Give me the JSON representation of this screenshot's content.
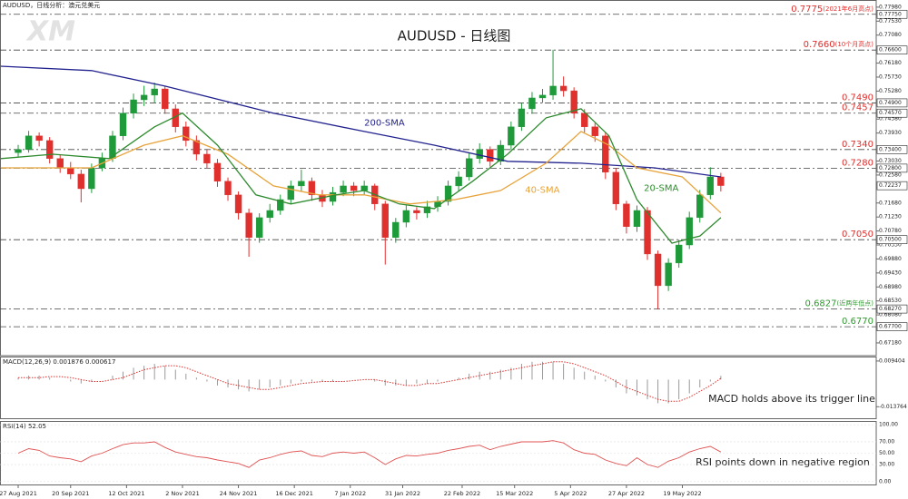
{
  "chart_data": [
    {
      "type": "candlestick",
      "title": "AUDUSD - 日线图",
      "header": "AUDUSD，日线分析：澳元兑美元",
      "watermark": "XM",
      "up_color": "#1f9a3a",
      "down_color": "#e0302e",
      "xlim": [
        -5.2,
        245.45
      ],
      "ylim": [
        0.6677,
        0.7821
      ],
      "xticks": [
        {
          "value": 0,
          "label": "27 Aug 2021"
        },
        {
          "value": 15,
          "label": "20 Sep 2021"
        },
        {
          "value": 31,
          "label": "12 Oct 2021"
        },
        {
          "value": 47,
          "label": "2 Nov 2021"
        },
        {
          "value": 63,
          "label": "24 Nov 2021"
        },
        {
          "value": 79,
          "label": "16 Dec 2021"
        },
        {
          "value": 95,
          "label": "7 Jan 2022"
        },
        {
          "value": 110,
          "label": "31 Jan 2022"
        },
        {
          "value": 127,
          "label": "22 Feb 2022"
        },
        {
          "value": 142,
          "label": "15 Mar 2022"
        },
        {
          "value": 158,
          "label": "5 Apr 2022"
        },
        {
          "value": 174,
          "label": "27 Apr 2022"
        },
        {
          "value": 190,
          "label": "19 May 2022"
        }
      ],
      "yticks": [
        {
          "value": 0.7798,
          "label": "0.77980"
        },
        {
          "value": 0.7753,
          "label": "0.77530"
        },
        {
          "value": 0.7708,
          "label": "0.77080"
        },
        {
          "value": 0.7618,
          "label": "0.76180"
        },
        {
          "value": 0.7573,
          "label": "0.75730"
        },
        {
          "value": 0.7528,
          "label": "0.75280"
        },
        {
          "value": 0.7438,
          "label": "0.74380"
        },
        {
          "value": 0.7393,
          "label": "0.73930"
        },
        {
          "value": 0.7303,
          "label": "0.73030"
        },
        {
          "value": 0.7258,
          "label": "0.72580"
        },
        {
          "value": 0.7168,
          "label": "0.71680"
        },
        {
          "value": 0.7123,
          "label": "0.71230"
        },
        {
          "value": 0.7078,
          "label": "0.70780"
        },
        {
          "value": 0.7033,
          "label": "0.70330"
        },
        {
          "value": 0.6988,
          "label": "0.69880"
        },
        {
          "value": 0.6943,
          "label": "0.69430"
        },
        {
          "value": 0.6898,
          "label": "0.68980"
        },
        {
          "value": 0.6853,
          "label": "0.68530"
        },
        {
          "value": 0.6808,
          "label": "0.68080"
        },
        {
          "value": 0.6718,
          "label": "0.67180"
        }
      ],
      "levels": [
        {
          "value": 0.7775,
          "label": "0.7775",
          "note": "(2021年6月高点)",
          "axis_label": "0.77750",
          "color": "#e0302e"
        },
        {
          "value": 0.766,
          "label": "0.7660",
          "note": "(10个月高点)",
          "axis_label": "0.76600",
          "color": "#e0302e"
        },
        {
          "value": 0.749,
          "label": "0.7490",
          "axis_label": "0.74900",
          "color": "#e0302e"
        },
        {
          "value": 0.7457,
          "label": "0.7457",
          "axis_label": "0.74570",
          "color": "#e0302e"
        },
        {
          "value": 0.734,
          "label": "0.7340",
          "axis_label": "0.73400",
          "color": "#e0302e"
        },
        {
          "value": 0.728,
          "label": "0.7280",
          "axis_label": "0.72800",
          "color": "#e0302e"
        },
        {
          "value": 0.705,
          "label": "0.7050",
          "axis_label": "0.70500",
          "color": "#e0302e"
        },
        {
          "value": 0.6827,
          "label": "0.6827",
          "note": "(近两年低点)",
          "axis_label": "0.68270",
          "color": "#2e9a2e"
        },
        {
          "value": 0.677,
          "label": "0.6770",
          "axis_label": "0.67700",
          "color": "#2e9a2e"
        }
      ],
      "last_price": {
        "value": 0.72237,
        "label": "0.72237"
      },
      "x": [
        0,
        3,
        6,
        9,
        12,
        15,
        18,
        21,
        24,
        27,
        30,
        33,
        36,
        39,
        42,
        45,
        48,
        51,
        54,
        57,
        60,
        63,
        66,
        69,
        72,
        75,
        78,
        81,
        84,
        87,
        90,
        93,
        96,
        99,
        102,
        105,
        108,
        111,
        114,
        117,
        120,
        123,
        126,
        129,
        132,
        135,
        138,
        141,
        144,
        147,
        150,
        153,
        156,
        159,
        162,
        165,
        168,
        171,
        174,
        177,
        180,
        183,
        186,
        189,
        192,
        195,
        198,
        201
      ],
      "ohlc": [
        [
          0.733,
          0.7355,
          0.7315,
          0.734
        ],
        [
          0.734,
          0.74,
          0.733,
          0.7384
        ],
        [
          0.7384,
          0.7395,
          0.735,
          0.7369
        ],
        [
          0.7369,
          0.738,
          0.7295,
          0.7311
        ],
        [
          0.7311,
          0.7325,
          0.7265,
          0.7281
        ],
        [
          0.7281,
          0.73,
          0.7245,
          0.7261
        ],
        [
          0.7261,
          0.7275,
          0.717,
          0.7214
        ],
        [
          0.7214,
          0.7295,
          0.72,
          0.7281
        ],
        [
          0.7281,
          0.733,
          0.727,
          0.7311
        ],
        [
          0.7311,
          0.74,
          0.73,
          0.7384
        ],
        [
          0.7384,
          0.7475,
          0.737,
          0.7457
        ],
        [
          0.7457,
          0.752,
          0.744,
          0.75
        ],
        [
          0.75,
          0.7545,
          0.748,
          0.7515
        ],
        [
          0.7515,
          0.7555,
          0.749,
          0.7535
        ],
        [
          0.7535,
          0.7545,
          0.7455,
          0.7471
        ],
        [
          0.7471,
          0.7485,
          0.7395,
          0.7413
        ],
        [
          0.7413,
          0.743,
          0.735,
          0.7369
        ],
        [
          0.7369,
          0.7385,
          0.7305,
          0.7325
        ],
        [
          0.7325,
          0.734,
          0.728,
          0.7296
        ],
        [
          0.7296,
          0.731,
          0.722,
          0.7238
        ],
        [
          0.7238,
          0.725,
          0.7175,
          0.7194
        ],
        [
          0.7194,
          0.7205,
          0.7115,
          0.7136
        ],
        [
          0.7136,
          0.715,
          0.6995,
          0.7057
        ],
        [
          0.7057,
          0.7135,
          0.704,
          0.7121
        ],
        [
          0.7121,
          0.7165,
          0.7105,
          0.7144
        ],
        [
          0.7144,
          0.7195,
          0.713,
          0.7179
        ],
        [
          0.7179,
          0.724,
          0.7165,
          0.7223
        ],
        [
          0.7223,
          0.7275,
          0.7205,
          0.7238
        ],
        [
          0.7238,
          0.725,
          0.7175,
          0.7194
        ],
        [
          0.7194,
          0.721,
          0.7155,
          0.7173
        ],
        [
          0.7173,
          0.722,
          0.716,
          0.7202
        ],
        [
          0.7202,
          0.724,
          0.719,
          0.7223
        ],
        [
          0.7223,
          0.7235,
          0.719,
          0.7208
        ],
        [
          0.7208,
          0.724,
          0.7195,
          0.7223
        ],
        [
          0.7223,
          0.723,
          0.7145,
          0.7165
        ],
        [
          0.7165,
          0.7175,
          0.697,
          0.7057
        ],
        [
          0.7057,
          0.712,
          0.704,
          0.7106
        ],
        [
          0.7106,
          0.716,
          0.709,
          0.7144
        ],
        [
          0.7144,
          0.7155,
          0.7115,
          0.7136
        ],
        [
          0.7136,
          0.7175,
          0.712,
          0.7156
        ],
        [
          0.7156,
          0.719,
          0.714,
          0.7173
        ],
        [
          0.7173,
          0.724,
          0.716,
          0.7223
        ],
        [
          0.7223,
          0.727,
          0.7205,
          0.7252
        ],
        [
          0.7252,
          0.733,
          0.724,
          0.7311
        ],
        [
          0.7311,
          0.736,
          0.7295,
          0.734
        ],
        [
          0.734,
          0.735,
          0.7285,
          0.7302
        ],
        [
          0.7302,
          0.737,
          0.729,
          0.7354
        ],
        [
          0.7354,
          0.743,
          0.734,
          0.7413
        ],
        [
          0.7413,
          0.749,
          0.74,
          0.7471
        ],
        [
          0.7471,
          0.7525,
          0.7455,
          0.7506
        ],
        [
          0.7506,
          0.7535,
          0.749,
          0.7515
        ],
        [
          0.7515,
          0.7661,
          0.75,
          0.7544
        ],
        [
          0.7544,
          0.7575,
          0.751,
          0.7529
        ],
        [
          0.7529,
          0.754,
          0.744,
          0.7457
        ],
        [
          0.7457,
          0.747,
          0.7395,
          0.7413
        ],
        [
          0.7413,
          0.7425,
          0.7365,
          0.7384
        ],
        [
          0.7384,
          0.7395,
          0.7245,
          0.7267
        ],
        [
          0.7267,
          0.728,
          0.7145,
          0.7165
        ],
        [
          0.7165,
          0.7175,
          0.707,
          0.7092
        ],
        [
          0.7092,
          0.716,
          0.7075,
          0.7144
        ],
        [
          0.7144,
          0.7155,
          0.6985,
          0.7004
        ],
        [
          0.7004,
          0.7015,
          0.6827,
          0.6902
        ],
        [
          0.6902,
          0.699,
          0.6885,
          0.6975
        ],
        [
          0.6975,
          0.705,
          0.696,
          0.7033
        ],
        [
          0.7033,
          0.714,
          0.702,
          0.7121
        ],
        [
          0.7121,
          0.721,
          0.7105,
          0.7194
        ],
        [
          0.7194,
          0.7283,
          0.718,
          0.7252
        ],
        [
          0.7252,
          0.7265,
          0.7205,
          0.7224
        ]
      ],
      "series": [
        {
          "name": "200-SMA",
          "color": "#23238f",
          "x": [
            -5,
            21,
            42,
            73,
            99,
            119,
            140,
            161,
            182,
            201
          ],
          "values": [
            0.7608,
            0.7594,
            0.7544,
            0.7457,
            0.7398,
            0.7354,
            0.7302,
            0.7296,
            0.7281,
            0.7252
          ],
          "label_at": [
            99,
            0.7425
          ]
        },
        {
          "name": "40-SMA",
          "color": "#e8a33a",
          "x": [
            -5,
            21,
            36,
            47,
            60,
            73,
            86,
            99,
            112,
            125,
            138,
            151,
            161,
            169,
            177,
            190,
            201
          ],
          "values": [
            0.7281,
            0.7281,
            0.7354,
            0.7384,
            0.7325,
            0.7223,
            0.7194,
            0.7194,
            0.7165,
            0.7179,
            0.7208,
            0.7296,
            0.7398,
            0.7354,
            0.7281,
            0.7252,
            0.7136
          ],
          "label_at": [
            145,
            0.721
          ]
        },
        {
          "name": "20-SMA",
          "color": "#2e8b2e",
          "x": [
            -5,
            10,
            26,
            39,
            47,
            57,
            68,
            78,
            91,
            99,
            109,
            119,
            130,
            140,
            151,
            161,
            169,
            177,
            187,
            195,
            201
          ],
          "values": [
            0.7311,
            0.7325,
            0.7311,
            0.7413,
            0.7457,
            0.7354,
            0.7194,
            0.7165,
            0.7194,
            0.7208,
            0.7165,
            0.715,
            0.7238,
            0.7325,
            0.7442,
            0.7471,
            0.7384,
            0.7179,
            0.7039,
            0.7062,
            0.7121
          ],
          "label_at": [
            179,
            0.7215
          ]
        }
      ]
    },
    {
      "type": "macd",
      "label": "MACD(12,26,9) 0.001876 0.000617",
      "annotation": "MACD holds above its trigger line",
      "xlim": [
        -5.2,
        245.45
      ],
      "ylim": [
        -0.0196,
        0.0112
      ],
      "yticks": [
        0.009404,
        -0.013764
      ],
      "x": [
        0,
        3,
        6,
        9,
        12,
        15,
        18,
        21,
        24,
        27,
        30,
        33,
        36,
        39,
        42,
        45,
        48,
        51,
        54,
        57,
        60,
        63,
        66,
        69,
        72,
        75,
        78,
        81,
        84,
        87,
        90,
        93,
        96,
        99,
        102,
        105,
        108,
        111,
        114,
        117,
        120,
        123,
        126,
        129,
        132,
        135,
        138,
        141,
        144,
        147,
        150,
        153,
        156,
        159,
        162,
        165,
        168,
        171,
        174,
        177,
        180,
        183,
        186,
        189,
        192,
        195,
        198,
        201
      ],
      "macd": [
        0.001,
        0.002,
        0.002,
        0.001,
        0,
        -0.001,
        -0.002,
        -0.001,
        0,
        0.002,
        0.004,
        0.006,
        0.007,
        0.008,
        0.007,
        0.005,
        0.003,
        0.001,
        -0.001,
        -0.003,
        -0.004,
        -0.005,
        -0.006,
        -0.005,
        -0.004,
        -0.003,
        -0.002,
        -0.001,
        -0.001,
        -0.001,
        -0.001,
        0,
        0,
        0,
        -0.001,
        -0.003,
        -0.003,
        -0.003,
        -0.002,
        -0.002,
        -0.001,
        0,
        0.001,
        0.003,
        0.004,
        0.004,
        0.005,
        0.006,
        0.008,
        0.009,
        0.009,
        0.009,
        0.008,
        0.006,
        0.004,
        0.002,
        -0.001,
        -0.004,
        -0.007,
        -0.008,
        -0.01,
        -0.012,
        -0.012,
        -0.01,
        -0.007,
        -0.004,
        -0.001,
        0.001876
      ],
      "signal": [
        0.001,
        0.001,
        0.001,
        0.0015,
        0.0015,
        0.001,
        0,
        -0.001,
        -0.001,
        0,
        0.001,
        0.003,
        0.005,
        0.006,
        0.007,
        0.007,
        0.006,
        0.004,
        0.002,
        0,
        -0.002,
        -0.003,
        -0.004,
        -0.005,
        -0.005,
        -0.004,
        -0.003,
        -0.002,
        -0.0015,
        -0.001,
        -0.001,
        -0.001,
        -0.0005,
        0,
        0,
        -0.001,
        -0.002,
        -0.003,
        -0.003,
        -0.002,
        -0.002,
        -0.001,
        0,
        0.001,
        0.002,
        0.003,
        0.004,
        0.005,
        0.006,
        0.007,
        0.008,
        0.009,
        0.009,
        0.008,
        0.006,
        0.004,
        0.002,
        -0.001,
        -0.004,
        -0.006,
        -0.008,
        -0.01,
        -0.011,
        -0.011,
        -0.009,
        -0.006,
        -0.003,
        0.000617
      ],
      "hist_color": "#9a9a9a",
      "signal_color": "#e0302e"
    },
    {
      "type": "line",
      "label": "RSI(14) 52.05",
      "annotation": "RSI points down in negative region",
      "color": "#e05050",
      "grid": true,
      "xlim": [
        -5.2,
        245.45
      ],
      "ylim": [
        -5,
        105
      ],
      "yticks": [
        {
          "value": 100,
          "label": "100.00"
        },
        {
          "value": 70,
          "label": "70.00"
        },
        {
          "value": 50,
          "label": "50.00"
        },
        {
          "value": 30,
          "label": "30.00"
        },
        {
          "value": 0,
          "label": "0.00"
        }
      ],
      "x": [
        0,
        3,
        6,
        9,
        12,
        15,
        18,
        21,
        24,
        27,
        30,
        33,
        36,
        39,
        42,
        45,
        48,
        51,
        54,
        57,
        60,
        63,
        66,
        69,
        72,
        75,
        78,
        81,
        84,
        87,
        90,
        93,
        96,
        99,
        102,
        105,
        108,
        111,
        114,
        117,
        120,
        123,
        126,
        129,
        132,
        135,
        138,
        141,
        144,
        147,
        150,
        153,
        156,
        159,
        162,
        165,
        168,
        171,
        174,
        177,
        180,
        183,
        186,
        189,
        192,
        195,
        198,
        201
      ],
      "values": [
        50,
        58,
        55,
        45,
        42,
        40,
        35,
        45,
        50,
        58,
        65,
        68,
        68,
        70,
        60,
        52,
        48,
        44,
        42,
        38,
        35,
        32,
        25,
        38,
        42,
        48,
        52,
        54,
        46,
        44,
        50,
        52,
        50,
        52,
        42,
        30,
        40,
        46,
        45,
        48,
        50,
        55,
        58,
        62,
        64,
        56,
        62,
        66,
        70,
        70,
        70,
        72,
        68,
        56,
        50,
        48,
        38,
        32,
        28,
        42,
        30,
        25,
        36,
        42,
        52,
        58,
        62,
        52.05
      ]
    }
  ]
}
